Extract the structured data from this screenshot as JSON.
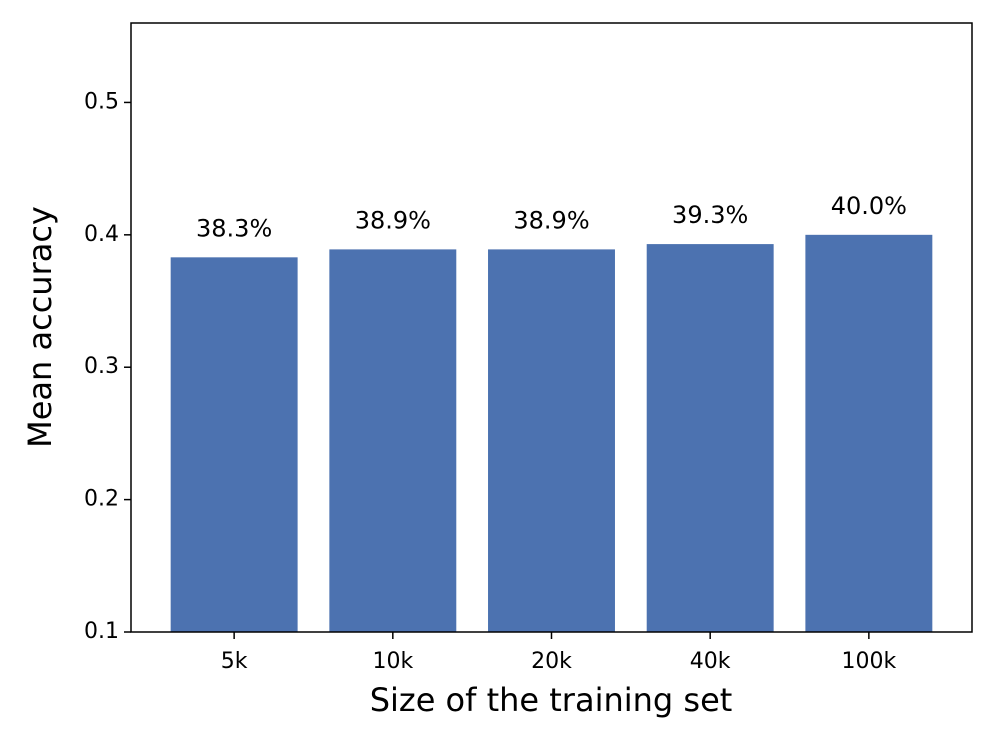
{
  "chart_data": {
    "type": "bar",
    "x_label": "Size of the training set",
    "y_label": "Mean accuracy",
    "categories": [
      "5k",
      "10k",
      "20k",
      "40k",
      "100k"
    ],
    "values": [
      0.383,
      0.389,
      0.389,
      0.393,
      0.4
    ],
    "value_labels": [
      "38.3%",
      "38.9%",
      "38.9%",
      "39.3%",
      "40.0%"
    ],
    "color": "#4c72b0",
    "ylim": [
      0.1,
      0.56
    ],
    "yticks": [
      0.1,
      0.2,
      0.3,
      0.4,
      0.5
    ],
    "grid": false
  }
}
